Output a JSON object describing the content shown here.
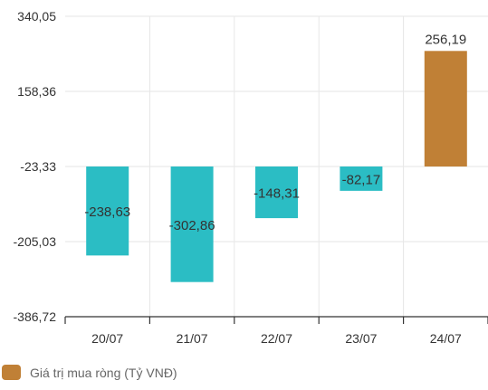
{
  "chart_data": {
    "type": "bar",
    "categories": [
      "20/07",
      "21/07",
      "22/07",
      "23/07",
      "24/07"
    ],
    "values": [
      -238.63,
      -302.86,
      -148.31,
      -82.17,
      256.19
    ],
    "value_labels": [
      "-238,63",
      "-302,86",
      "-148,31",
      "-82,17",
      "256,19"
    ],
    "y_ticks": [
      340.05,
      158.36,
      -23.33,
      -205.03,
      -386.72
    ],
    "y_tick_labels": [
      "340,05",
      "158,36",
      "-23,33",
      "-205,03",
      "-386,72"
    ],
    "ylim": [
      -386.72,
      340.05
    ],
    "grid": true,
    "legend_position": "bottom-left",
    "series": [
      {
        "name": "Giá trị mua ròng (Tỷ VNĐ)",
        "values": [
          -238.63,
          -302.86,
          -148.31,
          -82.17,
          256.19
        ]
      }
    ],
    "colors": {
      "negative": "#2bbdc4",
      "positive": "#c08036",
      "grid": "#e6e6e6",
      "axis": "#333333"
    }
  },
  "legend": {
    "label": "Giá trị mua ròng (Tỷ VNĐ)",
    "color": "#c08036"
  }
}
